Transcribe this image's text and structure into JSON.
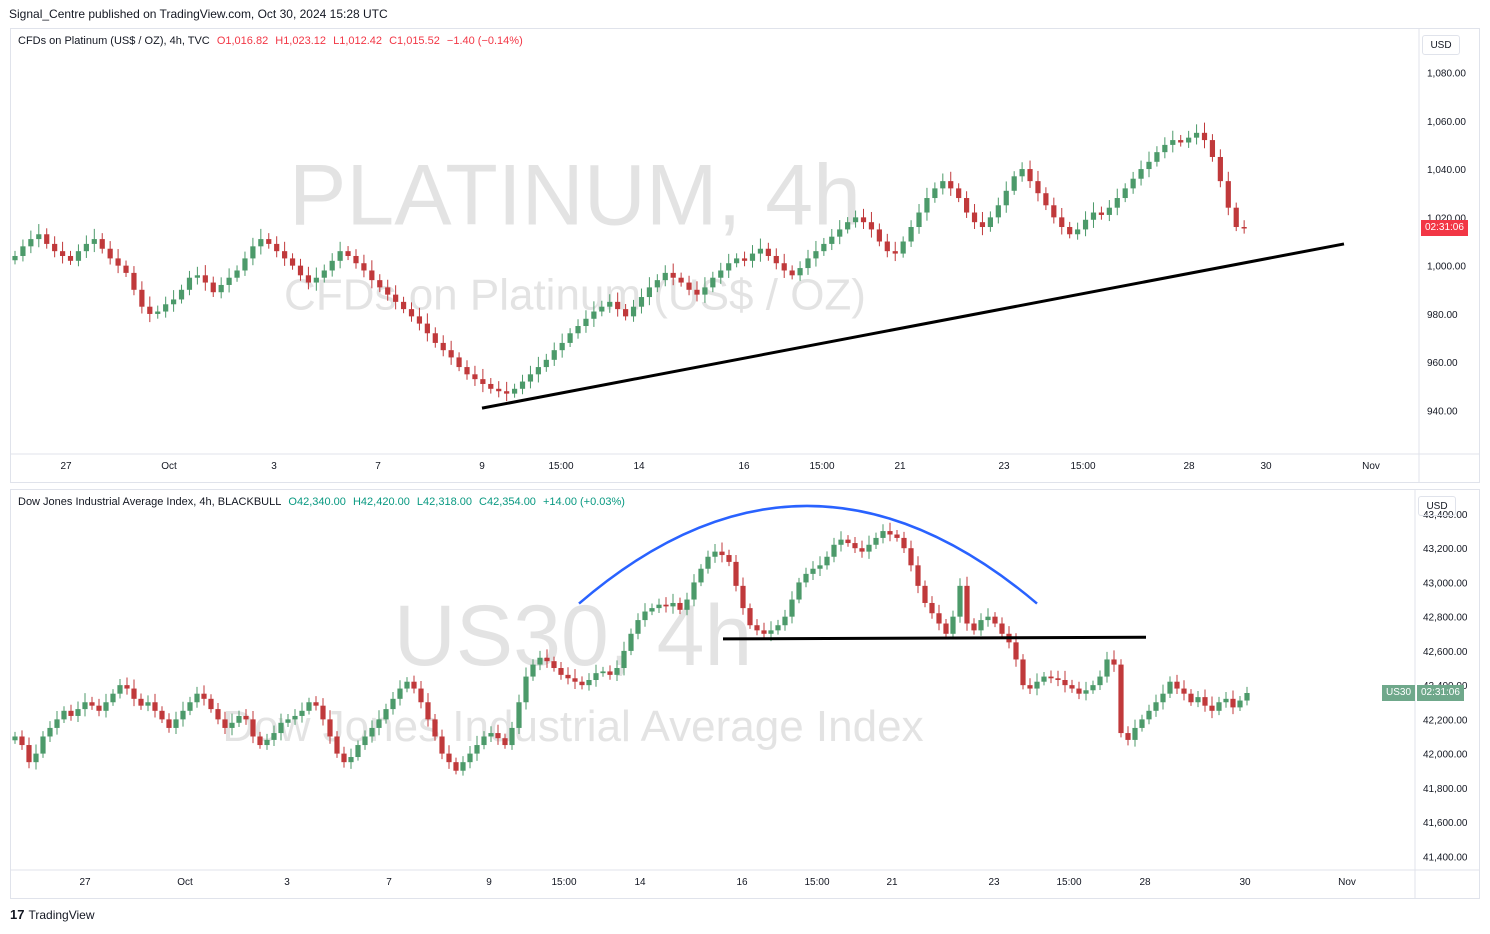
{
  "publisher": "Signal_Centre published on TradingView.com, Oct 30, 2024 15:28 UTC",
  "footer": {
    "brand": "TradingView",
    "logo_glyph": "17"
  },
  "panes": [
    {
      "id": "platinum",
      "legend": {
        "title": "CFDs on Platinum (US$ / OZ), 4h, TVC",
        "o": "O1,016.82",
        "h": "H1,023.12",
        "l": "L1,012.42",
        "c": "C1,015.52",
        "chg": "−1.40 (−0.14%)"
      },
      "currency": "USD",
      "watermark": {
        "line1": "PLATINUM, 4h",
        "line2": "CFDs on Platinum (US$ / OZ)"
      },
      "countdown": "02:31:06",
      "countdown_color": "#f23645",
      "symbol_badge": ""
    },
    {
      "id": "us30",
      "legend": {
        "title": "Dow Jones Industrial Average Index, 4h, BLACKBULL",
        "o": "O42,340.00",
        "h": "H42,420.00",
        "l": "L42,318.00",
        "c": "C42,354.00",
        "chg": "+14.00 (+0.03%)"
      },
      "currency": "USD",
      "watermark": {
        "line1": "US30, 4h",
        "line2": "Dow Jones Industrial Average Index"
      },
      "countdown": "02:31:06",
      "countdown_color": "#6fa88b",
      "symbol_badge": "US30"
    }
  ],
  "colors": {
    "up": "#26a69a",
    "up_body": "#4c9a6a",
    "down": "#f23645",
    "down_body": "#c0393b",
    "trendline": "#000000",
    "arc": "#2962ff"
  },
  "chart_data": [
    {
      "type": "candlestick",
      "title": "CFDs on Platinum (US$ / OZ), 4h, TVC",
      "y_ticks": [
        "1,080.00",
        "1,060.00",
        "1,040.00",
        "1,020.00",
        "1,000.00",
        "980.00",
        "960.00",
        "940.00"
      ],
      "y_tick_values": [
        1080,
        1060,
        1040,
        1020,
        1000,
        980,
        960,
        940
      ],
      "ylim": [
        922,
        1098
      ],
      "x_ticks": [
        "27",
        "Oct",
        "3",
        "7",
        "9",
        "15:00",
        "14",
        "16",
        "15:00",
        "21",
        "23",
        "15:00",
        "28",
        "30",
        "Nov"
      ],
      "last_close": 1015.52,
      "closes": [
        1004,
        1008,
        1011,
        1013,
        1009,
        1006,
        1004,
        1002,
        1006,
        1009,
        1011,
        1007,
        1003,
        1000,
        997,
        990,
        983,
        980,
        981,
        984,
        986,
        990,
        995,
        996,
        993,
        989,
        992,
        995,
        998,
        1003,
        1008,
        1011,
        1009,
        1006,
        1003,
        1000,
        996,
        993,
        995,
        998,
        1002,
        1006,
        1004,
        1001,
        998,
        994,
        991,
        988,
        985,
        982,
        979,
        976,
        972,
        968,
        965,
        962,
        958,
        955,
        953,
        951,
        949,
        948,
        947,
        949,
        952,
        955,
        958,
        961,
        965,
        968,
        972,
        975,
        978,
        981,
        983,
        985,
        982,
        979,
        983,
        987,
        991,
        994,
        997,
        995,
        993,
        990,
        988,
        991,
        995,
        998,
        1001,
        1003,
        1002,
        1005,
        1007,
        1004,
        1001,
        998,
        996,
        999,
        1003,
        1006,
        1009,
        1012,
        1015,
        1018,
        1020,
        1018,
        1015,
        1010,
        1006,
        1005,
        1010,
        1016,
        1022,
        1028,
        1032,
        1035,
        1032,
        1028,
        1022,
        1018,
        1016,
        1020,
        1025,
        1031,
        1037,
        1040,
        1035,
        1030,
        1025,
        1020,
        1016,
        1013,
        1015,
        1019,
        1022,
        1021,
        1024,
        1028,
        1032,
        1036,
        1040,
        1043,
        1047,
        1050,
        1052,
        1051,
        1053,
        1055,
        1052,
        1045,
        1035,
        1024,
        1016,
        1015.52
      ],
      "trendline": [
        {
          "date": "Oct 9",
          "value": 941
        },
        {
          "date": "Nov 1",
          "value": 1009
        }
      ]
    },
    {
      "type": "candlestick",
      "title": "Dow Jones Industrial Average Index, 4h, BLACKBULL",
      "y_ticks": [
        "43,400.00",
        "43,200.00",
        "43,000.00",
        "42,800.00",
        "42,600.00",
        "42,400.00",
        "42,200.00",
        "42,000.00",
        "41,800.00",
        "41,600.00",
        "41,400.00"
      ],
      "y_tick_values": [
        43400,
        43200,
        43000,
        42800,
        42600,
        42400,
        42200,
        42000,
        41800,
        41600,
        41400
      ],
      "ylim": [
        41320,
        43540
      ],
      "x_ticks": [
        "27",
        "Oct",
        "3",
        "7",
        "9",
        "15:00",
        "14",
        "16",
        "15:00",
        "21",
        "23",
        "15:00",
        "28",
        "30",
        "Nov"
      ],
      "last_close": 42354,
      "closes": [
        42100,
        42050,
        41950,
        42000,
        42100,
        42150,
        42200,
        42250,
        42220,
        42260,
        42300,
        42280,
        42250,
        42300,
        42350,
        42400,
        42380,
        42320,
        42280,
        42300,
        42250,
        42200,
        42150,
        42200,
        42250,
        42300,
        42350,
        42320,
        42260,
        42200,
        42150,
        42180,
        42220,
        42200,
        42100,
        42050,
        42080,
        42120,
        42180,
        42200,
        42220,
        42250,
        42300,
        42280,
        42200,
        42100,
        42000,
        41950,
        41980,
        42050,
        42100,
        42150,
        42200,
        42260,
        42320,
        42380,
        42420,
        42380,
        42300,
        42200,
        42100,
        42000,
        41950,
        41900,
        41950,
        42000,
        42050,
        42100,
        42120,
        42090,
        42050,
        42150,
        42300,
        42450,
        42520,
        42560,
        42540,
        42500,
        42460,
        42440,
        42420,
        42400,
        42430,
        42470,
        42480,
        42460,
        42500,
        42600,
        42700,
        42780,
        42830,
        42850,
        42870,
        42860,
        42880,
        42840,
        42900,
        43000,
        43080,
        43150,
        43180,
        43160,
        43120,
        42980,
        42850,
        42750,
        42720,
        42700,
        42720,
        42750,
        42800,
        42900,
        43000,
        43050,
        43080,
        43100,
        43150,
        43220,
        43250,
        43230,
        43200,
        43180,
        43220,
        43260,
        43300,
        43280,
        43260,
        43200,
        43100,
        42980,
        42880,
        42820,
        42760,
        42700,
        42800,
        42980,
        42760,
        42720,
        42780,
        42800,
        42760,
        42700,
        42650,
        42550,
        42400,
        42380,
        42420,
        42450,
        42440,
        42430,
        42400,
        42380,
        42350,
        42370,
        42400,
        42450,
        42550,
        42520,
        42120,
        42080,
        42150,
        42200,
        42250,
        42300,
        42350,
        42420,
        42380,
        42350,
        42300,
        42330,
        42280,
        42250,
        42300,
        42320,
        42270,
        42310,
        42354
      ],
      "support_line": [
        {
          "date": "Oct 15",
          "value": 42670
        },
        {
          "date": "Oct 27",
          "value": 42680
        }
      ],
      "rounding_top_arc": true
    }
  ]
}
